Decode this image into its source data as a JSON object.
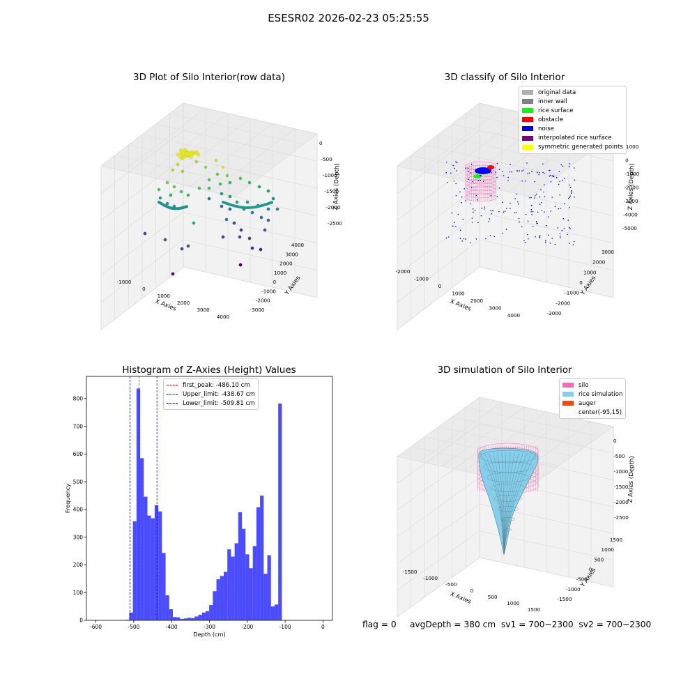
{
  "figure": {
    "suptitle": "ESESR02 2026-02-23 05:25:55",
    "footer": "flag = 0     avgDepth = 380 cm  sv1 = 700~2300  sv2 = 700~2300"
  },
  "panels": {
    "raw": {
      "title": "3D Plot of Silo Interior(row data)",
      "xlabel": "X Axies",
      "ylabel": "Y Axies",
      "zlabel": "Z Axies (Depth)",
      "xticks": [
        "-1000",
        "0",
        "1000",
        "2000",
        "3000",
        "4000"
      ],
      "yticks": [
        "-3000",
        "-2000",
        "-1000",
        "0",
        "1000",
        "2000",
        "3000",
        "4000"
      ],
      "zticks": [
        "-2500",
        "-2000",
        "-1500",
        "-1000",
        "-500",
        "0"
      ]
    },
    "classify": {
      "title": "3D classify of Silo Interior",
      "xlabel": "X Axies",
      "ylabel": "Y Axies",
      "zlabel": "Z Axies (Depth)",
      "xticks": [
        "-2000",
        "-1000",
        "0",
        "1000",
        "2000",
        "3000",
        "4000"
      ],
      "yticks": [
        "-3000",
        "-2000",
        "-1000",
        "0",
        "1000",
        "2000",
        "3000"
      ],
      "zticks": [
        "-5000",
        "-4000",
        "-3000",
        "-2000",
        "-1000",
        "0",
        "1000"
      ],
      "legend": [
        {
          "label": "original data",
          "color": "#b0b0b0"
        },
        {
          "label": "inner wall",
          "color": "#808080"
        },
        {
          "label": "rice surface",
          "color": "#00ff00"
        },
        {
          "label": "obstacle",
          "color": "#ff0000"
        },
        {
          "label": "noise",
          "color": "#0000ff"
        },
        {
          "label": "interpolated rice surface",
          "color": "#800080"
        },
        {
          "label": "symmetric generated points",
          "color": "#ffff00"
        }
      ]
    },
    "histogram": {
      "title": "Histogram of Z-Axies (Height) Values",
      "xlabel": "Depth (cm)",
      "ylabel": "Frequency",
      "legend": [
        {
          "label": "first_peak: -486.10 cm",
          "color": "#ff0000"
        },
        {
          "label": "Upper_limit: -438.67 cm",
          "color": "#0000ff"
        },
        {
          "label": "Lower_limit: -509.81 cm",
          "color": "#0000ff"
        }
      ]
    },
    "simulation": {
      "title": "3D simulation of Silo Interior",
      "xlabel": "X Axies",
      "ylabel": "Y Axies",
      "zlabel": "Z Axies (Depth)",
      "xticks": [
        "-1500",
        "-1000",
        "-500",
        "0",
        "500",
        "1000",
        "1500"
      ],
      "yticks": [
        "-1500",
        "-1000",
        "-500",
        "0",
        "500",
        "1000",
        "1500"
      ],
      "zticks": [
        "-2500",
        "-2000",
        "-1500",
        "-1000",
        "-500",
        "0"
      ],
      "legend": [
        {
          "label": "silo",
          "color": "#ff69b4"
        },
        {
          "label": "rice simulation",
          "color": "#87ceeb"
        },
        {
          "label": "auger",
          "color": "#ff4500"
        },
        {
          "label": "center(-95,15)",
          "color": "none"
        }
      ]
    }
  },
  "chart_data": {
    "type": "bar",
    "title": "Histogram of Z-Axies (Height) Values",
    "xlabel": "Depth (cm)",
    "ylabel": "Frequency",
    "xlim": [
      -625,
      25
    ],
    "ylim": [
      0,
      880
    ],
    "xticks": [
      -600,
      -500,
      -400,
      -300,
      -200,
      -100,
      0
    ],
    "yticks": [
      0,
      100,
      200,
      300,
      400,
      500,
      600,
      700,
      800
    ],
    "bin_width": 9.6,
    "bar_color": "#0000ff",
    "bar_alpha": 0.7,
    "bins": [
      {
        "x0": -521.5,
        "count": 2
      },
      {
        "x0": -511.9,
        "count": 28
      },
      {
        "x0": -502.3,
        "count": 357
      },
      {
        "x0": -492.7,
        "count": 836
      },
      {
        "x0": -483.1,
        "count": 585
      },
      {
        "x0": -473.5,
        "count": 446
      },
      {
        "x0": -463.9,
        "count": 378
      },
      {
        "x0": -454.3,
        "count": 368
      },
      {
        "x0": -444.7,
        "count": 415
      },
      {
        "x0": -435.1,
        "count": 393
      },
      {
        "x0": -425.5,
        "count": 243
      },
      {
        "x0": -415.9,
        "count": 90
      },
      {
        "x0": -406.3,
        "count": 40
      },
      {
        "x0": -396.7,
        "count": 12
      },
      {
        "x0": -387.1,
        "count": 11
      },
      {
        "x0": -377.5,
        "count": 5
      },
      {
        "x0": -367.9,
        "count": 7
      },
      {
        "x0": -358.3,
        "count": 9
      },
      {
        "x0": -348.7,
        "count": 8
      },
      {
        "x0": -339.1,
        "count": 14
      },
      {
        "x0": -329.5,
        "count": 20
      },
      {
        "x0": -319.9,
        "count": 28
      },
      {
        "x0": -310.3,
        "count": 33
      },
      {
        "x0": -300.7,
        "count": 55
      },
      {
        "x0": -291.1,
        "count": 105
      },
      {
        "x0": -281.5,
        "count": 148
      },
      {
        "x0": -271.9,
        "count": 160
      },
      {
        "x0": -262.3,
        "count": 175
      },
      {
        "x0": -252.7,
        "count": 256
      },
      {
        "x0": -243.1,
        "count": 230
      },
      {
        "x0": -233.5,
        "count": 278
      },
      {
        "x0": -223.9,
        "count": 390
      },
      {
        "x0": -214.3,
        "count": 330
      },
      {
        "x0": -204.7,
        "count": 238
      },
      {
        "x0": -195.1,
        "count": 188
      },
      {
        "x0": -185.5,
        "count": 268
      },
      {
        "x0": -175.9,
        "count": 408
      },
      {
        "x0": -166.3,
        "count": 450
      },
      {
        "x0": -156.7,
        "count": 168
      },
      {
        "x0": -147.1,
        "count": 235
      },
      {
        "x0": -137.5,
        "count": 50
      },
      {
        "x0": -127.9,
        "count": 57
      },
      {
        "x0": -118.3,
        "count": 782
      }
    ],
    "reference_lines": [
      {
        "label": "first_peak: -486.10 cm",
        "x": -486.1,
        "color": "#ff0000"
      },
      {
        "label": "Upper_limit: -438.67 cm",
        "x": -438.67,
        "color": "#0000ff"
      },
      {
        "label": "Lower_limit: -509.81 cm",
        "x": -509.81,
        "color": "#0000ff"
      }
    ]
  }
}
